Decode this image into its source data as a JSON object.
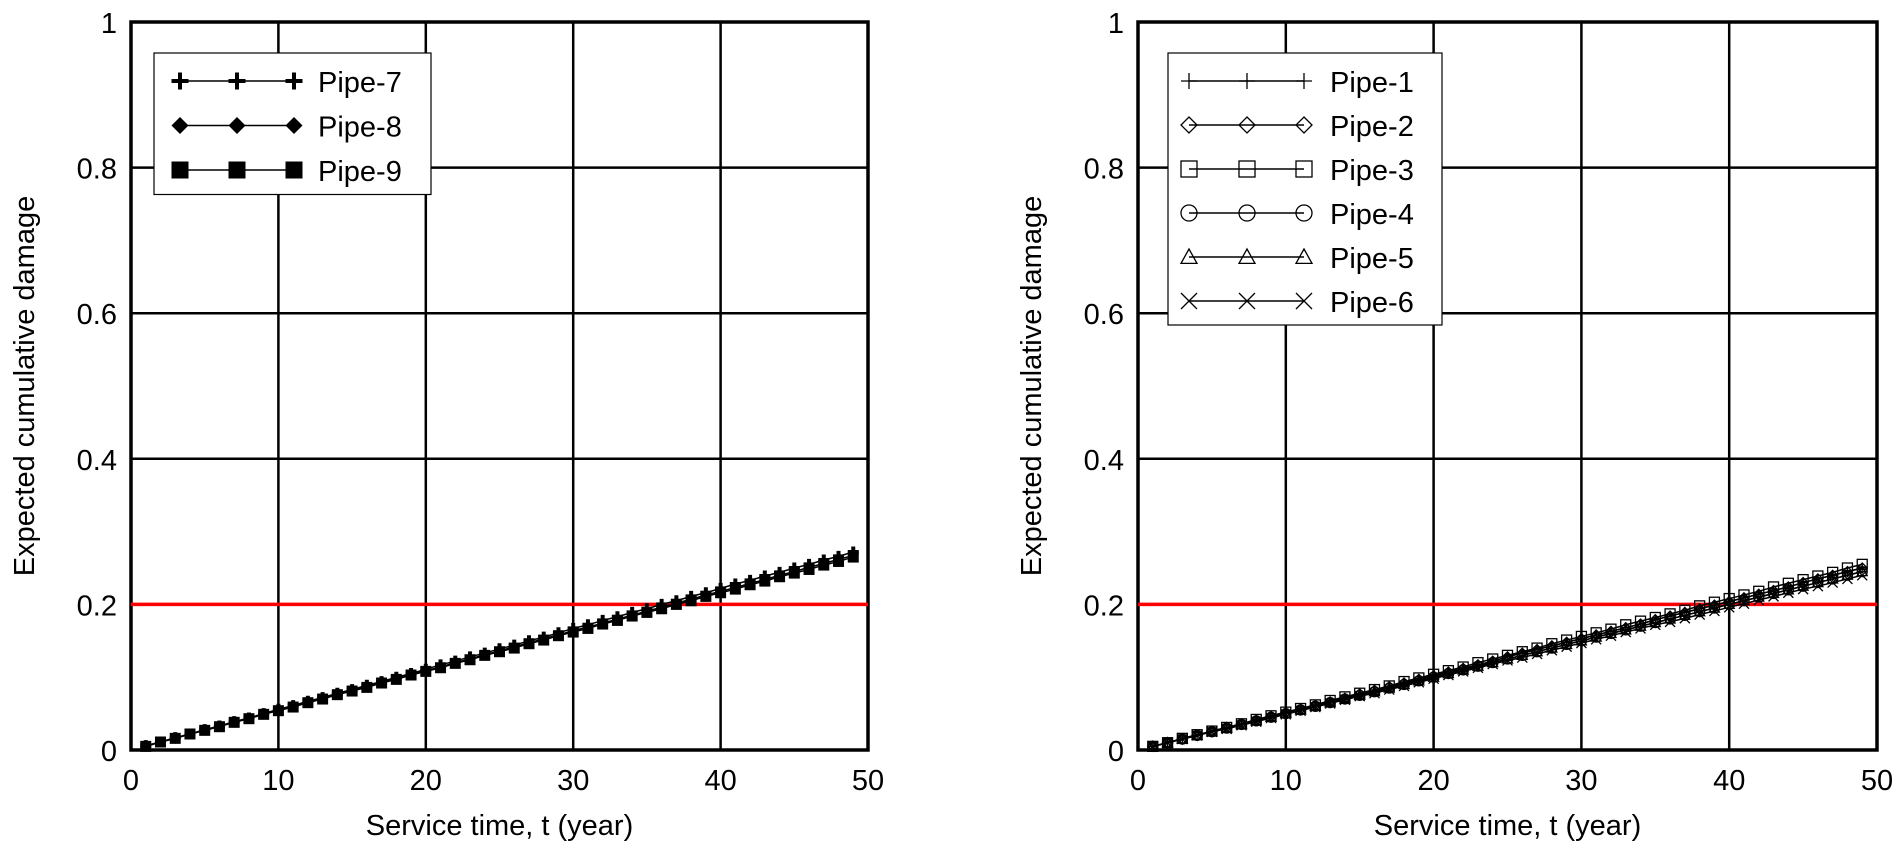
{
  "chart_data": [
    {
      "type": "line",
      "title": "",
      "xlabel": "Service time, t (year)",
      "ylabel": "Expected cumulative damage",
      "xlim": [
        0,
        50
      ],
      "ylim": [
        0,
        1
      ],
      "xticks": [
        "0",
        "10",
        "20",
        "30",
        "40",
        "50"
      ],
      "yticks": [
        "0",
        "0.2",
        "0.4",
        "0.6",
        "0.8",
        "1"
      ],
      "grid": true,
      "legend_position": "top-left",
      "threshold": {
        "value": 0.2,
        "color": "#ff0000"
      },
      "x": [
        1,
        2,
        3,
        4,
        5,
        6,
        7,
        8,
        9,
        10,
        11,
        12,
        13,
        14,
        15,
        16,
        17,
        18,
        19,
        20,
        21,
        22,
        23,
        24,
        25,
        26,
        27,
        28,
        29,
        30,
        31,
        32,
        33,
        34,
        35,
        36,
        37,
        38,
        39,
        40,
        41,
        42,
        43,
        44,
        45,
        46,
        47,
        48,
        49
      ],
      "series": [
        {
          "name": "Pipe-7",
          "marker": "plus-bold",
          "values": [
            0.006,
            0.011,
            0.017,
            0.022,
            0.028,
            0.033,
            0.039,
            0.044,
            0.05,
            0.056,
            0.061,
            0.067,
            0.072,
            0.078,
            0.083,
            0.089,
            0.094,
            0.1,
            0.105,
            0.111,
            0.117,
            0.122,
            0.128,
            0.133,
            0.139,
            0.144,
            0.15,
            0.155,
            0.161,
            0.167,
            0.172,
            0.178,
            0.183,
            0.189,
            0.194,
            0.2,
            0.205,
            0.211,
            0.216,
            0.222,
            0.228,
            0.233,
            0.239,
            0.244,
            0.25,
            0.255,
            0.261,
            0.266,
            0.272
          ]
        },
        {
          "name": "Pipe-8",
          "marker": "diamond-filled",
          "values": [
            0.005,
            0.011,
            0.016,
            0.022,
            0.027,
            0.033,
            0.038,
            0.044,
            0.049,
            0.055,
            0.06,
            0.065,
            0.071,
            0.076,
            0.082,
            0.087,
            0.093,
            0.098,
            0.104,
            0.109,
            0.114,
            0.12,
            0.125,
            0.131,
            0.136,
            0.142,
            0.147,
            0.153,
            0.158,
            0.164,
            0.169,
            0.174,
            0.18,
            0.185,
            0.191,
            0.196,
            0.202,
            0.207,
            0.213,
            0.218,
            0.223,
            0.229,
            0.234,
            0.24,
            0.245,
            0.251,
            0.256,
            0.262,
            0.267
          ]
        },
        {
          "name": "Pipe-9",
          "marker": "square-filled",
          "values": [
            0.005,
            0.011,
            0.016,
            0.022,
            0.027,
            0.032,
            0.038,
            0.043,
            0.049,
            0.054,
            0.059,
            0.065,
            0.07,
            0.076,
            0.081,
            0.086,
            0.092,
            0.097,
            0.103,
            0.108,
            0.113,
            0.119,
            0.124,
            0.13,
            0.135,
            0.14,
            0.146,
            0.151,
            0.157,
            0.162,
            0.167,
            0.173,
            0.178,
            0.184,
            0.189,
            0.194,
            0.2,
            0.205,
            0.211,
            0.216,
            0.221,
            0.227,
            0.232,
            0.238,
            0.243,
            0.248,
            0.254,
            0.259,
            0.265
          ]
        }
      ]
    },
    {
      "type": "line",
      "title": "",
      "xlabel": "Service time, t (year)",
      "ylabel": "Expected cumulative damage",
      "xlim": [
        0,
        50
      ],
      "ylim": [
        0,
        1
      ],
      "xticks": [
        "0",
        "10",
        "20",
        "30",
        "40",
        "50"
      ],
      "yticks": [
        "0",
        "0.2",
        "0.4",
        "0.6",
        "0.8",
        "1"
      ],
      "grid": true,
      "legend_position": "top-left",
      "threshold": {
        "value": 0.2,
        "color": "#ff0000"
      },
      "x": [
        1,
        2,
        3,
        4,
        5,
        6,
        7,
        8,
        9,
        10,
        11,
        12,
        13,
        14,
        15,
        16,
        17,
        18,
        19,
        20,
        21,
        22,
        23,
        24,
        25,
        26,
        27,
        28,
        29,
        30,
        31,
        32,
        33,
        34,
        35,
        36,
        37,
        38,
        39,
        40,
        41,
        42,
        43,
        44,
        45,
        46,
        47,
        48,
        49
      ],
      "series": [
        {
          "name": "Pipe-1",
          "marker": "plus",
          "values": [
            0.005,
            0.01,
            0.015,
            0.02,
            0.026,
            0.031,
            0.036,
            0.041,
            0.046,
            0.051,
            0.056,
            0.061,
            0.066,
            0.071,
            0.077,
            0.082,
            0.087,
            0.092,
            0.097,
            0.102,
            0.107,
            0.112,
            0.117,
            0.122,
            0.128,
            0.133,
            0.138,
            0.143,
            0.148,
            0.153,
            0.158,
            0.163,
            0.168,
            0.173,
            0.179,
            0.184,
            0.189,
            0.194,
            0.199,
            0.204,
            0.209,
            0.214,
            0.219,
            0.224,
            0.23,
            0.235,
            0.24,
            0.245,
            0.25
          ]
        },
        {
          "name": "Pipe-2",
          "marker": "diamond-open",
          "values": [
            0.005,
            0.01,
            0.015,
            0.02,
            0.026,
            0.031,
            0.036,
            0.041,
            0.046,
            0.051,
            0.056,
            0.061,
            0.066,
            0.071,
            0.077,
            0.082,
            0.087,
            0.092,
            0.097,
            0.102,
            0.107,
            0.112,
            0.117,
            0.122,
            0.128,
            0.133,
            0.138,
            0.143,
            0.148,
            0.153,
            0.158,
            0.163,
            0.168,
            0.173,
            0.179,
            0.184,
            0.189,
            0.194,
            0.199,
            0.204,
            0.209,
            0.214,
            0.219,
            0.224,
            0.23,
            0.235,
            0.24,
            0.245,
            0.25
          ]
        },
        {
          "name": "Pipe-3",
          "marker": "square-open",
          "values": [
            0.005,
            0.01,
            0.016,
            0.021,
            0.026,
            0.031,
            0.036,
            0.042,
            0.047,
            0.052,
            0.057,
            0.062,
            0.068,
            0.073,
            0.078,
            0.083,
            0.088,
            0.094,
            0.099,
            0.104,
            0.109,
            0.114,
            0.12,
            0.125,
            0.13,
            0.135,
            0.14,
            0.146,
            0.151,
            0.156,
            0.161,
            0.166,
            0.172,
            0.177,
            0.182,
            0.187,
            0.192,
            0.198,
            0.203,
            0.208,
            0.213,
            0.218,
            0.224,
            0.229,
            0.234,
            0.239,
            0.244,
            0.25,
            0.255
          ]
        },
        {
          "name": "Pipe-4",
          "marker": "circle-open",
          "values": [
            0.005,
            0.01,
            0.015,
            0.02,
            0.025,
            0.03,
            0.035,
            0.04,
            0.045,
            0.05,
            0.055,
            0.06,
            0.065,
            0.07,
            0.075,
            0.08,
            0.085,
            0.09,
            0.095,
            0.1,
            0.105,
            0.11,
            0.115,
            0.12,
            0.125,
            0.13,
            0.135,
            0.14,
            0.145,
            0.15,
            0.155,
            0.16,
            0.165,
            0.17,
            0.175,
            0.18,
            0.185,
            0.19,
            0.195,
            0.2,
            0.205,
            0.21,
            0.215,
            0.22,
            0.225,
            0.23,
            0.235,
            0.24,
            0.245
          ]
        },
        {
          "name": "Pipe-5",
          "marker": "triangle-open",
          "values": [
            0.005,
            0.01,
            0.015,
            0.02,
            0.025,
            0.03,
            0.035,
            0.04,
            0.045,
            0.05,
            0.055,
            0.06,
            0.065,
            0.07,
            0.075,
            0.08,
            0.085,
            0.09,
            0.095,
            0.1,
            0.105,
            0.11,
            0.115,
            0.12,
            0.125,
            0.13,
            0.135,
            0.14,
            0.145,
            0.15,
            0.155,
            0.16,
            0.165,
            0.17,
            0.175,
            0.18,
            0.185,
            0.19,
            0.195,
            0.2,
            0.205,
            0.21,
            0.215,
            0.22,
            0.225,
            0.23,
            0.235,
            0.24,
            0.245
          ]
        },
        {
          "name": "Pipe-6",
          "marker": "x",
          "values": [
            0.005,
            0.01,
            0.015,
            0.02,
            0.025,
            0.029,
            0.034,
            0.039,
            0.044,
            0.049,
            0.054,
            0.059,
            0.064,
            0.069,
            0.074,
            0.078,
            0.083,
            0.088,
            0.093,
            0.098,
            0.103,
            0.108,
            0.113,
            0.118,
            0.123,
            0.127,
            0.132,
            0.137,
            0.142,
            0.147,
            0.152,
            0.157,
            0.162,
            0.167,
            0.172,
            0.176,
            0.181,
            0.186,
            0.191,
            0.196,
            0.201,
            0.206,
            0.211,
            0.216,
            0.221,
            0.225,
            0.23,
            0.235,
            0.24
          ]
        }
      ]
    }
  ]
}
